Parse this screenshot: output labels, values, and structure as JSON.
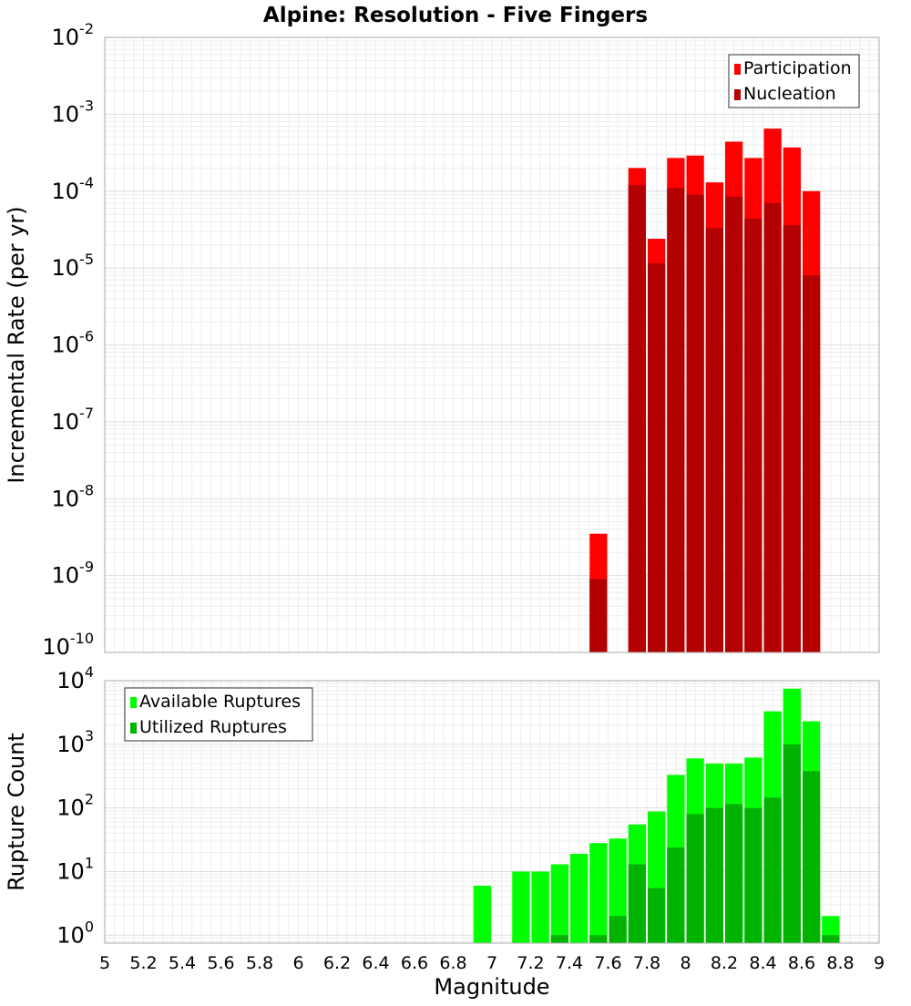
{
  "title": "Alpine: Resolution - Five Fingers",
  "x_axis_label": "Magnitude",
  "chart_data": [
    {
      "type": "bar",
      "stacked_overlay": true,
      "ylabel": "Incremental Rate (per yr)",
      "yscale": "log",
      "ylim": [
        1e-10,
        0.01
      ],
      "xlim": [
        5,
        9
      ],
      "bin_width": 0.1,
      "grid": true,
      "legend_position": "top-right",
      "series": [
        {
          "name": "Participation",
          "color": "#ff0000",
          "x": [
            7.55,
            7.75,
            7.85,
            7.95,
            8.05,
            8.15,
            8.25,
            8.35,
            8.45,
            8.55,
            8.65
          ],
          "values": [
            3.5e-09,
            0.0002,
            2.4e-05,
            0.00027,
            0.00029,
            0.00013,
            0.00044,
            0.00027,
            0.00065,
            0.00037,
            0.0001
          ]
        },
        {
          "name": "Nucleation",
          "color": "#b30000",
          "x": [
            7.55,
            7.75,
            7.85,
            7.95,
            8.05,
            8.15,
            8.25,
            8.35,
            8.45,
            8.55,
            8.65
          ],
          "values": [
            9e-10,
            0.00012,
            1.15e-05,
            0.00011,
            9e-05,
            3.3e-05,
            8.5e-05,
            4.4e-05,
            7e-05,
            3.6e-05,
            8e-06
          ]
        }
      ]
    },
    {
      "type": "bar",
      "stacked_overlay": true,
      "ylabel": "Rupture Count",
      "yscale": "log",
      "ylim": [
        0.75,
        10000
      ],
      "xlim": [
        5,
        9
      ],
      "bin_width": 0.1,
      "grid": true,
      "legend_position": "top-left",
      "series": [
        {
          "name": "Available Ruptures",
          "color": "#00ff00",
          "x": [
            6.95,
            7.15,
            7.25,
            7.35,
            7.45,
            7.55,
            7.65,
            7.75,
            7.85,
            7.95,
            8.05,
            8.15,
            8.25,
            8.35,
            8.45,
            8.55,
            8.65,
            8.75
          ],
          "values": [
            6,
            10,
            10,
            13,
            19,
            28,
            33,
            55,
            88,
            330,
            600,
            500,
            500,
            620,
            3300,
            7500,
            2300,
            2
          ]
        },
        {
          "name": "Utilized Ruptures",
          "color": "#00b300",
          "x": [
            7.35,
            7.55,
            7.65,
            7.75,
            7.85,
            7.95,
            8.05,
            8.15,
            8.25,
            8.35,
            8.45,
            8.55,
            8.65,
            8.75
          ],
          "values": [
            1,
            1,
            2,
            13,
            5.5,
            24,
            80,
            100,
            115,
            100,
            145,
            1000,
            380,
            1
          ]
        }
      ]
    }
  ],
  "x_ticks": [
    "5",
    "5.2",
    "5.4",
    "5.6",
    "5.8",
    "6",
    "6.2",
    "6.4",
    "6.6",
    "6.8",
    "7",
    "7.2",
    "7.4",
    "7.6",
    "7.8",
    "8",
    "8.2",
    "8.4",
    "8.6",
    "8.8",
    "9"
  ]
}
